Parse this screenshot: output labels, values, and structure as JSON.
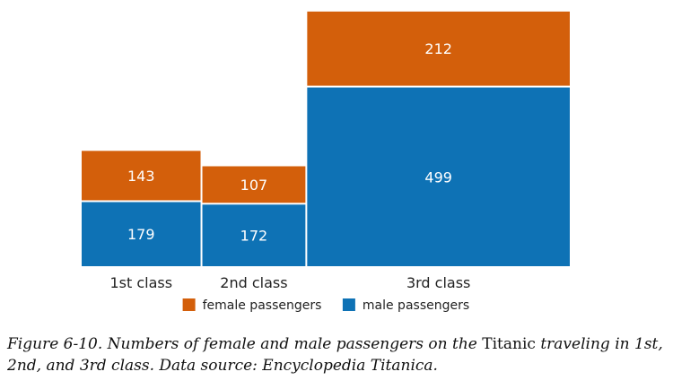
{
  "chart_data": {
    "type": "bar",
    "stacked": true,
    "categories": [
      "1st class",
      "2nd class",
      "3rd class"
    ],
    "series": [
      {
        "name": "male passengers",
        "values": [
          179,
          172,
          499
        ],
        "color": "#0e72b5"
      },
      {
        "name": "female passengers",
        "values": [
          143,
          107,
          212
        ],
        "color": "#d35f0b"
      }
    ],
    "bar_width_proportional_to_total": true,
    "legend": {
      "placement": "bottom-center",
      "entries": [
        {
          "label": "female passengers",
          "color": "#d35f0b"
        },
        {
          "label": "male passengers",
          "color": "#0e72b5"
        }
      ]
    },
    "grid": false,
    "axes_visible": false,
    "label_color": "#ffffff"
  },
  "caption": {
    "part1": "Figure 6-10. Numbers of female and male passengers on the ",
    "title_word": "Titanic",
    "part2": " traveling in 1st, 2nd, and 3rd class. Data source: Encyclopedia Titanica."
  }
}
